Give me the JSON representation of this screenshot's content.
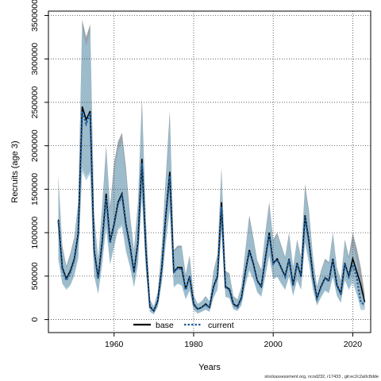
{
  "chart_data": {
    "type": "line",
    "xlabel": "Years",
    "ylabel": "Recruits (age 3)",
    "xlim": [
      1943.5,
      2024.5
    ],
    "ylim": [
      -150000,
      3550000
    ],
    "x_ticks": [
      1960,
      1980,
      2000,
      2020
    ],
    "x_tick_labels": [
      "1960",
      "1980",
      "2000",
      "2020"
    ],
    "y_ticks": [
      0,
      500000,
      1000000,
      1500000,
      2000000,
      2500000,
      3000000,
      3500000
    ],
    "y_tick_labels": [
      "0",
      "500000",
      "1000000",
      "1500000",
      "2000000",
      "2500000",
      "3000000",
      "3500000"
    ],
    "grid": true,
    "legend_position": "bottom-center",
    "colors": {
      "band_base": "#8f9aa3",
      "band_current": "#9cc3d6",
      "base_line": "#000000",
      "current_line": "#1f5f9e"
    },
    "x": [
      1946,
      1947,
      1948,
      1949,
      1950,
      1951,
      1952,
      1953,
      1954,
      1955,
      1956,
      1957,
      1958,
      1959,
      1960,
      1961,
      1962,
      1963,
      1964,
      1965,
      1966,
      1967,
      1968,
      1969,
      1970,
      1971,
      1972,
      1973,
      1974,
      1975,
      1976,
      1977,
      1978,
      1979,
      1980,
      1981,
      1982,
      1983,
      1984,
      1985,
      1986,
      1987,
      1988,
      1989,
      1990,
      1991,
      1992,
      1993,
      1994,
      1995,
      1996,
      1997,
      1998,
      1999,
      2000,
      2001,
      2002,
      2003,
      2004,
      2005,
      2006,
      2007,
      2008,
      2009,
      2010,
      2011,
      2012,
      2013,
      2014,
      2015,
      2016,
      2017,
      2018,
      2019,
      2020,
      2021,
      2022,
      2023
    ],
    "series": [
      {
        "name": "base",
        "values": [
          1150000,
          600000,
          470000,
          560000,
          700000,
          1000000,
          2450000,
          2300000,
          2400000,
          800000,
          480000,
          900000,
          1450000,
          900000,
          1100000,
          1350000,
          1450000,
          1100000,
          850000,
          550000,
          900000,
          1850000,
          800000,
          150000,
          100000,
          220000,
          600000,
          1200000,
          1700000,
          550000,
          600000,
          600000,
          350000,
          500000,
          180000,
          120000,
          140000,
          180000,
          140000,
          380000,
          500000,
          1350000,
          380000,
          350000,
          180000,
          150000,
          250000,
          550000,
          800000,
          650000,
          450000,
          380000,
          700000,
          1000000,
          650000,
          700000,
          600000,
          500000,
          700000,
          400000,
          650000,
          500000,
          1200000,
          900000,
          500000,
          250000,
          380000,
          480000,
          450000,
          700000,
          400000,
          300000,
          650000,
          500000,
          700000,
          550000,
          400000,
          200000
        ],
        "lower": [
          700000,
          420000,
          360000,
          400000,
          520000,
          720000,
          1750000,
          1650000,
          1700000,
          520000,
          300000,
          650000,
          1100000,
          650000,
          850000,
          1050000,
          1100000,
          800000,
          620000,
          380000,
          650000,
          1450000,
          580000,
          90000,
          60000,
          150000,
          430000,
          900000,
          1300000,
          380000,
          420000,
          400000,
          240000,
          340000,
          110000,
          70000,
          90000,
          120000,
          90000,
          260000,
          350000,
          1050000,
          270000,
          250000,
          120000,
          100000,
          170000,
          400000,
          580000,
          470000,
          320000,
          270000,
          500000,
          750000,
          470000,
          500000,
          420000,
          350000,
          500000,
          280000,
          460000,
          350000,
          900000,
          660000,
          350000,
          170000,
          260000,
          340000,
          310000,
          500000,
          280000,
          200000,
          460000,
          350000,
          480000,
          300000,
          180000,
          130000
        ],
        "upper": [
          1650000,
          850000,
          620000,
          760000,
          950000,
          1350000,
          3450000,
          3250000,
          3400000,
          1200000,
          700000,
          1300000,
          2000000,
          1300000,
          1800000,
          2050000,
          2150000,
          1750000,
          1200000,
          800000,
          1350000,
          2550000,
          1150000,
          230000,
          150000,
          320000,
          860000,
          1650000,
          2400000,
          800000,
          850000,
          850000,
          520000,
          740000,
          280000,
          180000,
          210000,
          270000,
          210000,
          560000,
          750000,
          1750000,
          560000,
          530000,
          270000,
          230000,
          380000,
          800000,
          1200000,
          950000,
          680000,
          570000,
          1000000,
          1350000,
          920000,
          1000000,
          860000,
          720000,
          1000000,
          600000,
          920000,
          720000,
          1560000,
          1250000,
          720000,
          380000,
          560000,
          700000,
          660000,
          1000000,
          600000,
          450000,
          920000,
          730000,
          1000000,
          820000,
          600000,
          290000
        ]
      },
      {
        "name": "current",
        "values": [
          1130000,
          580000,
          450000,
          540000,
          680000,
          980000,
          2400000,
          2250000,
          2380000,
          780000,
          470000,
          880000,
          1400000,
          880000,
          1080000,
          1330000,
          1420000,
          1080000,
          830000,
          540000,
          880000,
          1800000,
          780000,
          140000,
          100000,
          210000,
          590000,
          1180000,
          1650000,
          540000,
          590000,
          580000,
          340000,
          490000,
          170000,
          120000,
          140000,
          170000,
          140000,
          370000,
          490000,
          1300000,
          370000,
          340000,
          170000,
          140000,
          240000,
          540000,
          780000,
          640000,
          440000,
          370000,
          690000,
          980000,
          640000,
          690000,
          590000,
          490000,
          690000,
          390000,
          640000,
          490000,
          1180000,
          880000,
          490000,
          240000,
          370000,
          470000,
          440000,
          690000,
          390000,
          290000,
          640000,
          490000,
          630000,
          480000,
          200000,
          170000
        ],
        "lower": [
          720000,
          410000,
          340000,
          390000,
          500000,
          700000,
          1700000,
          1600000,
          1680000,
          500000,
          290000,
          630000,
          1050000,
          630000,
          830000,
          1030000,
          1070000,
          780000,
          600000,
          370000,
          630000,
          1400000,
          560000,
          90000,
          60000,
          140000,
          420000,
          880000,
          1250000,
          370000,
          410000,
          390000,
          230000,
          330000,
          110000,
          70000,
          90000,
          110000,
          90000,
          250000,
          340000,
          1000000,
          260000,
          240000,
          120000,
          100000,
          160000,
          390000,
          560000,
          460000,
          310000,
          260000,
          490000,
          730000,
          460000,
          490000,
          410000,
          340000,
          490000,
          270000,
          450000,
          340000,
          880000,
          640000,
          340000,
          160000,
          250000,
          330000,
          300000,
          490000,
          270000,
          190000,
          450000,
          340000,
          420000,
          290000,
          110000,
          110000
        ],
        "upper": [
          1580000,
          820000,
          600000,
          730000,
          920000,
          1320000,
          3350000,
          3150000,
          3300000,
          1150000,
          680000,
          1250000,
          1950000,
          1250000,
          1700000,
          1950000,
          2050000,
          1650000,
          1150000,
          780000,
          1300000,
          2450000,
          1100000,
          220000,
          150000,
          310000,
          830000,
          1600000,
          2300000,
          780000,
          820000,
          830000,
          500000,
          720000,
          270000,
          180000,
          210000,
          260000,
          210000,
          540000,
          720000,
          1700000,
          540000,
          510000,
          260000,
          220000,
          370000,
          780000,
          1150000,
          920000,
          660000,
          550000,
          980000,
          1300000,
          900000,
          970000,
          840000,
          700000,
          980000,
          580000,
          900000,
          700000,
          1500000,
          1200000,
          700000,
          370000,
          540000,
          680000,
          640000,
          980000,
          580000,
          440000,
          900000,
          700000,
          850000,
          680000,
          300000,
          270000
        ]
      }
    ]
  },
  "legend": {
    "base_label": "base",
    "current_label": "current"
  },
  "footer": {
    "caption": "stockassessment.org, ncod232, r17433 , git:ec2c2a0c8dde"
  }
}
